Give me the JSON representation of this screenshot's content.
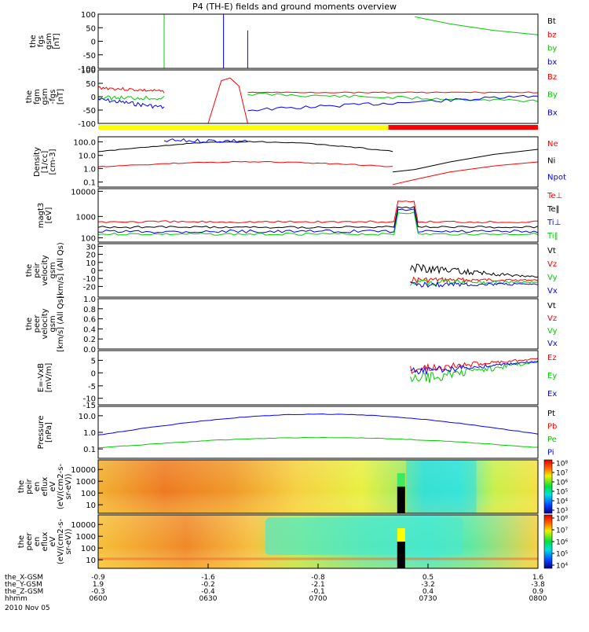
{
  "title": "P4 (TH-E) fields and ground moments overview",
  "colors": {
    "black": "#000000",
    "red": "#ff0000",
    "green": "#00cc00",
    "blue": "#0000ff",
    "yellow": "#ffff00"
  },
  "chart_data": [
    {
      "type": "line",
      "ylabel": [
        "the",
        "fgs",
        "gsm",
        "[nT]"
      ],
      "yticks": [
        "100",
        "50",
        "0",
        "-50",
        "-100"
      ],
      "legend": [
        {
          "text": "Bt",
          "color": "black"
        },
        {
          "text": "bz",
          "color": "red"
        },
        {
          "text": "by",
          "color": "green"
        },
        {
          "text": "bx",
          "color": "blue"
        }
      ]
    },
    {
      "type": "line",
      "ylabel": [
        "the",
        "fgm",
        "gsm",
        "-fgs",
        "[nT]"
      ],
      "yticks": [
        "100",
        "50",
        "0",
        "-50",
        "-100"
      ],
      "legend": [
        {
          "text": "Bz",
          "color": "red"
        },
        {
          "text": "By",
          "color": "green"
        },
        {
          "text": "Bx",
          "color": "blue"
        }
      ],
      "status_bar": [
        {
          "from": "0600",
          "to": "0713",
          "color": "yellow"
        },
        {
          "from": "0713",
          "to": "0800",
          "color": "red"
        }
      ]
    },
    {
      "type": "line",
      "ylabel": [
        "Density",
        "[1/cc]",
        "[cm-3]"
      ],
      "yticks": [
        "100.0",
        "10.0",
        "1.0",
        "0.1"
      ],
      "legend": [
        {
          "text": "Ne",
          "color": "red"
        },
        {
          "text": "Ni",
          "color": "black"
        },
        {
          "text": "Npot",
          "color": "blue"
        }
      ]
    },
    {
      "type": "line",
      "ylabel": [
        "magt3",
        "[eV]"
      ],
      "yticks": [
        "10000",
        "1000",
        "100"
      ],
      "legend": [
        {
          "text": "Te⊥",
          "color": "red"
        },
        {
          "text": "Te‖",
          "color": "black"
        },
        {
          "text": "Ti⊥",
          "color": "blue"
        },
        {
          "text": "Ti‖",
          "color": "green"
        }
      ]
    },
    {
      "type": "line",
      "ylabel": [
        "the",
        "peir",
        "velocity",
        "gsm",
        "[km/s] (All Qs)"
      ],
      "yticks": [
        "30",
        "20",
        "10",
        "0",
        "-10",
        "-20"
      ],
      "legend": [
        {
          "text": "Vt",
          "color": "black"
        },
        {
          "text": "Vz",
          "color": "red"
        },
        {
          "text": "Vy",
          "color": "green"
        },
        {
          "text": "Vx",
          "color": "blue"
        }
      ]
    },
    {
      "type": "line",
      "ylabel": [
        "the",
        "peer",
        "velocity",
        "gsm",
        "[km/s] (All Qs)"
      ],
      "yticks": [
        "1.0",
        "0.8",
        "0.6",
        "0.4",
        "0.2",
        "0.0"
      ],
      "legend": [
        {
          "text": "Vt",
          "color": "black"
        },
        {
          "text": "Vz",
          "color": "red"
        },
        {
          "text": "Vy",
          "color": "green"
        },
        {
          "text": "Vx",
          "color": "blue"
        }
      ]
    },
    {
      "type": "line",
      "ylabel": [
        "E=-VxB",
        "[mV/m]"
      ],
      "yticks": [
        "5",
        "0",
        "-5",
        "-10",
        "-15"
      ],
      "legend": [
        {
          "text": "Ez",
          "color": "red"
        },
        {
          "text": "Ey",
          "color": "green"
        },
        {
          "text": "Ex",
          "color": "blue"
        }
      ]
    },
    {
      "type": "line",
      "ylabel": [
        "Pressure",
        "[nPa]"
      ],
      "yticks": [
        "10.0",
        "1.0",
        "0.1"
      ],
      "legend": [
        {
          "text": "Pt",
          "color": "black"
        },
        {
          "text": "Pb",
          "color": "red"
        },
        {
          "text": "Pe",
          "color": "green"
        },
        {
          "text": "Pi",
          "color": "blue"
        }
      ]
    },
    {
      "type": "heatmap",
      "ylabel": [
        "the",
        "peir",
        "en",
        "eflux",
        "eV",
        "(eV/(cm2-s-",
        "sr-eV))"
      ],
      "yticks": [
        "10000",
        "1000",
        "100",
        "10"
      ],
      "colorbar_ticks": [
        "10⁸",
        "10⁷",
        "10⁶",
        "10⁵",
        "10⁴",
        "10³"
      ]
    },
    {
      "type": "heatmap",
      "ylabel": [
        "the",
        "peer",
        "en",
        "eflux",
        "eV",
        "(eV/(cm2-s-",
        "sr-eV))"
      ],
      "yticks": [
        "10000",
        "1000",
        "100",
        "10"
      ],
      "colorbar_ticks": [
        "10⁸",
        "10⁷",
        "10⁶",
        "10⁵",
        "10⁴"
      ]
    }
  ],
  "x_axis": {
    "row_labels": [
      "the_X-GSM",
      "the_Y-GSM",
      "the_Z-GSM",
      "hhmm"
    ],
    "date": "2010 Nov 05",
    "ticks": [
      {
        "values": [
          "-0.9",
          "1.9",
          "-0.3",
          "0600"
        ]
      },
      {
        "values": [
          "-1.6",
          "-0.2",
          "-0.4",
          "0630"
        ]
      },
      {
        "values": [
          "-0.8",
          "-2.1",
          "-0.1",
          "0700"
        ]
      },
      {
        "values": [
          "0.5",
          "-3.2",
          "0.4",
          "0730"
        ]
      },
      {
        "values": [
          "1.6",
          "-3.8",
          "0.9",
          "0800"
        ]
      }
    ]
  }
}
